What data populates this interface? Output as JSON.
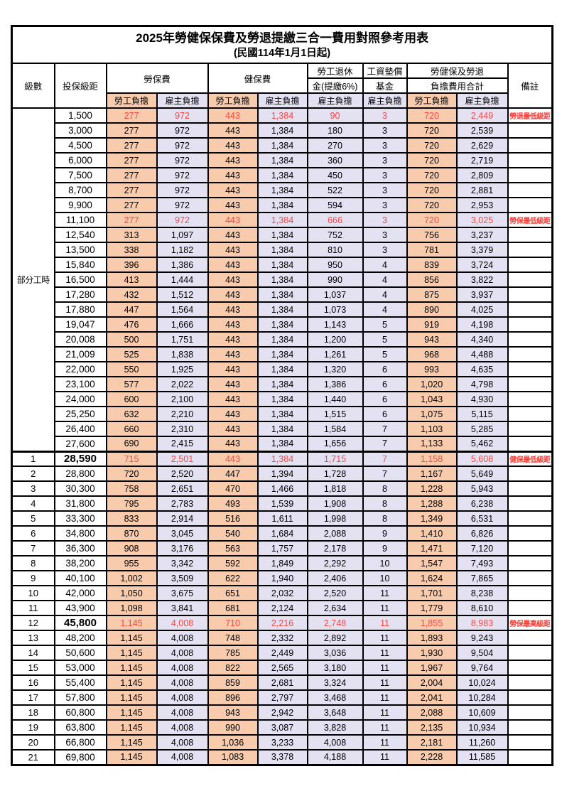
{
  "title": "2025年勞健保保費及勞退提繳三合一費用對照參考用表",
  "subtitle": "(民國114年1月1日起)",
  "header": {
    "level": "級數",
    "bracket": "投保級距",
    "labor_ins": "勞保費",
    "health_ins": "健保費",
    "pension_line1": "勞工退休",
    "pension_line2": "金(提繳6%)",
    "wage_fund_line1": "工資墊償",
    "wage_fund_line2": "基金",
    "total_line1": "勞健保及勞退",
    "total_line2": "負擔費用合計",
    "employee": "勞工負擔",
    "employer": "雇主負擔",
    "remark": "備註"
  },
  "part_time_label": "部分工時",
  "colors": {
    "employee_bg": "#F8CBAD",
    "employer_bg": "#E3E1F2",
    "highlight_red": "#F74740",
    "note_red": "#F83B33"
  },
  "table": {
    "value_column_kinds": [
      "emp",
      "er",
      "emp",
      "er",
      "er",
      "er",
      "emp",
      "er"
    ],
    "rows": [
      {
        "level": "",
        "bracket": "1,500",
        "values": [
          "277",
          "972",
          "443",
          "1,384",
          "90",
          "3",
          "720",
          "2,449"
        ],
        "note": "勞退最低級距",
        "highlight": true,
        "bold_bracket": false
      },
      {
        "level": "",
        "bracket": "3,000",
        "values": [
          "277",
          "972",
          "443",
          "1,384",
          "180",
          "3",
          "720",
          "2,539"
        ],
        "note": "",
        "highlight": false,
        "bold_bracket": false
      },
      {
        "level": "",
        "bracket": "4,500",
        "values": [
          "277",
          "972",
          "443",
          "1,384",
          "270",
          "3",
          "720",
          "2,629"
        ],
        "note": "",
        "highlight": false,
        "bold_bracket": false
      },
      {
        "level": "",
        "bracket": "6,000",
        "values": [
          "277",
          "972",
          "443",
          "1,384",
          "360",
          "3",
          "720",
          "2,719"
        ],
        "note": "",
        "highlight": false,
        "bold_bracket": false
      },
      {
        "level": "",
        "bracket": "7,500",
        "values": [
          "277",
          "972",
          "443",
          "1,384",
          "450",
          "3",
          "720",
          "2,809"
        ],
        "note": "",
        "highlight": false,
        "bold_bracket": false
      },
      {
        "level": "",
        "bracket": "8,700",
        "values": [
          "277",
          "972",
          "443",
          "1,384",
          "522",
          "3",
          "720",
          "2,881"
        ],
        "note": "",
        "highlight": false,
        "bold_bracket": false
      },
      {
        "level": "",
        "bracket": "9,900",
        "values": [
          "277",
          "972",
          "443",
          "1,384",
          "594",
          "3",
          "720",
          "2,953"
        ],
        "note": "",
        "highlight": false,
        "bold_bracket": false
      },
      {
        "level": "",
        "bracket": "11,100",
        "values": [
          "277",
          "972",
          "443",
          "1,384",
          "666",
          "3",
          "720",
          "3,025"
        ],
        "note": "勞保最低級距",
        "highlight": true,
        "bold_bracket": false
      },
      {
        "level": "",
        "bracket": "12,540",
        "values": [
          "313",
          "1,097",
          "443",
          "1,384",
          "752",
          "3",
          "756",
          "3,237"
        ],
        "note": "",
        "highlight": false,
        "bold_bracket": false
      },
      {
        "level": "",
        "bracket": "13,500",
        "values": [
          "338",
          "1,182",
          "443",
          "1,384",
          "810",
          "3",
          "781",
          "3,379"
        ],
        "note": "",
        "highlight": false,
        "bold_bracket": false
      },
      {
        "level": "",
        "bracket": "15,840",
        "values": [
          "396",
          "1,386",
          "443",
          "1,384",
          "950",
          "4",
          "839",
          "3,724"
        ],
        "note": "",
        "highlight": false,
        "bold_bracket": false
      },
      {
        "level": "",
        "bracket": "16,500",
        "values": [
          "413",
          "1,444",
          "443",
          "1,384",
          "990",
          "4",
          "856",
          "3,822"
        ],
        "note": "",
        "highlight": false,
        "bold_bracket": false
      },
      {
        "level": "",
        "bracket": "17,280",
        "values": [
          "432",
          "1,512",
          "443",
          "1,384",
          "1,037",
          "4",
          "875",
          "3,937"
        ],
        "note": "",
        "highlight": false,
        "bold_bracket": false
      },
      {
        "level": "",
        "bracket": "17,880",
        "values": [
          "447",
          "1,564",
          "443",
          "1,384",
          "1,073",
          "4",
          "890",
          "4,025"
        ],
        "note": "",
        "highlight": false,
        "bold_bracket": false
      },
      {
        "level": "",
        "bracket": "19,047",
        "values": [
          "476",
          "1,666",
          "443",
          "1,384",
          "1,143",
          "5",
          "919",
          "4,198"
        ],
        "note": "",
        "highlight": false,
        "bold_bracket": false
      },
      {
        "level": "",
        "bracket": "20,008",
        "values": [
          "500",
          "1,751",
          "443",
          "1,384",
          "1,200",
          "5",
          "943",
          "4,340"
        ],
        "note": "",
        "highlight": false,
        "bold_bracket": false
      },
      {
        "level": "",
        "bracket": "21,009",
        "values": [
          "525",
          "1,838",
          "443",
          "1,384",
          "1,261",
          "5",
          "968",
          "4,488"
        ],
        "note": "",
        "highlight": false,
        "bold_bracket": false
      },
      {
        "level": "",
        "bracket": "22,000",
        "values": [
          "550",
          "1,925",
          "443",
          "1,384",
          "1,320",
          "6",
          "993",
          "4,635"
        ],
        "note": "",
        "highlight": false,
        "bold_bracket": false
      },
      {
        "level": "",
        "bracket": "23,100",
        "values": [
          "577",
          "2,022",
          "443",
          "1,384",
          "1,386",
          "6",
          "1,020",
          "4,798"
        ],
        "note": "",
        "highlight": false,
        "bold_bracket": false
      },
      {
        "level": "",
        "bracket": "24,000",
        "values": [
          "600",
          "2,100",
          "443",
          "1,384",
          "1,440",
          "6",
          "1,043",
          "4,930"
        ],
        "note": "",
        "highlight": false,
        "bold_bracket": false
      },
      {
        "level": "",
        "bracket": "25,250",
        "values": [
          "632",
          "2,210",
          "443",
          "1,384",
          "1,515",
          "6",
          "1,075",
          "5,115"
        ],
        "note": "",
        "highlight": false,
        "bold_bracket": false
      },
      {
        "level": "",
        "bracket": "26,400",
        "values": [
          "660",
          "2,310",
          "443",
          "1,384",
          "1,584",
          "7",
          "1,103",
          "5,285"
        ],
        "note": "",
        "highlight": false,
        "bold_bracket": false
      },
      {
        "level": "",
        "bracket": "27,600",
        "values": [
          "690",
          "2,415",
          "443",
          "1,384",
          "1,656",
          "7",
          "1,133",
          "5,462"
        ],
        "note": "",
        "highlight": false,
        "bold_bracket": false
      },
      {
        "level": "1",
        "bracket": "28,590",
        "values": [
          "715",
          "2,501",
          "443",
          "1,384",
          "1,715",
          "7",
          "1,158",
          "5,608"
        ],
        "note": "健保最低級距",
        "highlight": true,
        "bold_bracket": true,
        "section_break": true
      },
      {
        "level": "2",
        "bracket": "28,800",
        "values": [
          "720",
          "2,520",
          "447",
          "1,394",
          "1,728",
          "7",
          "1,167",
          "5,649"
        ],
        "note": "",
        "highlight": false,
        "bold_bracket": false
      },
      {
        "level": "3",
        "bracket": "30,300",
        "values": [
          "758",
          "2,651",
          "470",
          "1,466",
          "1,818",
          "8",
          "1,228",
          "5,943"
        ],
        "note": "",
        "highlight": false,
        "bold_bracket": false
      },
      {
        "level": "4",
        "bracket": "31,800",
        "values": [
          "795",
          "2,783",
          "493",
          "1,539",
          "1,908",
          "8",
          "1,288",
          "6,238"
        ],
        "note": "",
        "highlight": false,
        "bold_bracket": false
      },
      {
        "level": "5",
        "bracket": "33,300",
        "values": [
          "833",
          "2,914",
          "516",
          "1,611",
          "1,998",
          "8",
          "1,349",
          "6,531"
        ],
        "note": "",
        "highlight": false,
        "bold_bracket": false
      },
      {
        "level": "6",
        "bracket": "34,800",
        "values": [
          "870",
          "3,045",
          "540",
          "1,684",
          "2,088",
          "9",
          "1,410",
          "6,826"
        ],
        "note": "",
        "highlight": false,
        "bold_bracket": false
      },
      {
        "level": "7",
        "bracket": "36,300",
        "values": [
          "908",
          "3,176",
          "563",
          "1,757",
          "2,178",
          "9",
          "1,471",
          "7,120"
        ],
        "note": "",
        "highlight": false,
        "bold_bracket": false
      },
      {
        "level": "8",
        "bracket": "38,200",
        "values": [
          "955",
          "3,342",
          "592",
          "1,849",
          "2,292",
          "10",
          "1,547",
          "7,493"
        ],
        "note": "",
        "highlight": false,
        "bold_bracket": false
      },
      {
        "level": "9",
        "bracket": "40,100",
        "values": [
          "1,002",
          "3,509",
          "622",
          "1,940",
          "2,406",
          "10",
          "1,624",
          "7,865"
        ],
        "note": "",
        "highlight": false,
        "bold_bracket": false
      },
      {
        "level": "10",
        "bracket": "42,000",
        "values": [
          "1,050",
          "3,675",
          "651",
          "2,032",
          "2,520",
          "11",
          "1,701",
          "8,238"
        ],
        "note": "",
        "highlight": false,
        "bold_bracket": false
      },
      {
        "level": "11",
        "bracket": "43,900",
        "values": [
          "1,098",
          "3,841",
          "681",
          "2,124",
          "2,634",
          "11",
          "1,779",
          "8,610"
        ],
        "note": "",
        "highlight": false,
        "bold_bracket": false
      },
      {
        "level": "12",
        "bracket": "45,800",
        "values": [
          "1,145",
          "4,008",
          "710",
          "2,216",
          "2,748",
          "11",
          "1,855",
          "8,983"
        ],
        "note": "勞保最高級距",
        "highlight": true,
        "bold_bracket": true
      },
      {
        "level": "13",
        "bracket": "48,200",
        "values": [
          "1,145",
          "4,008",
          "748",
          "2,332",
          "2,892",
          "11",
          "1,893",
          "9,243"
        ],
        "note": "",
        "highlight": false,
        "bold_bracket": false
      },
      {
        "level": "14",
        "bracket": "50,600",
        "values": [
          "1,145",
          "4,008",
          "785",
          "2,449",
          "3,036",
          "11",
          "1,930",
          "9,504"
        ],
        "note": "",
        "highlight": false,
        "bold_bracket": false
      },
      {
        "level": "15",
        "bracket": "53,000",
        "values": [
          "1,145",
          "4,008",
          "822",
          "2,565",
          "3,180",
          "11",
          "1,967",
          "9,764"
        ],
        "note": "",
        "highlight": false,
        "bold_bracket": false
      },
      {
        "level": "16",
        "bracket": "55,400",
        "values": [
          "1,145",
          "4,008",
          "859",
          "2,681",
          "3,324",
          "11",
          "2,004",
          "10,024"
        ],
        "note": "",
        "highlight": false,
        "bold_bracket": false
      },
      {
        "level": "17",
        "bracket": "57,800",
        "values": [
          "1,145",
          "4,008",
          "896",
          "2,797",
          "3,468",
          "11",
          "2,041",
          "10,284"
        ],
        "note": "",
        "highlight": false,
        "bold_bracket": false
      },
      {
        "level": "18",
        "bracket": "60,800",
        "values": [
          "1,145",
          "4,008",
          "943",
          "2,942",
          "3,648",
          "11",
          "2,088",
          "10,609"
        ],
        "note": "",
        "highlight": false,
        "bold_bracket": false
      },
      {
        "level": "19",
        "bracket": "63,800",
        "values": [
          "1,145",
          "4,008",
          "990",
          "3,087",
          "3,828",
          "11",
          "2,135",
          "10,934"
        ],
        "note": "",
        "highlight": false,
        "bold_bracket": false
      },
      {
        "level": "20",
        "bracket": "66,800",
        "values": [
          "1,145",
          "4,008",
          "1,036",
          "3,233",
          "4,008",
          "11",
          "2,181",
          "11,260"
        ],
        "note": "",
        "highlight": false,
        "bold_bracket": false
      },
      {
        "level": "21",
        "bracket": "69,800",
        "values": [
          "1,145",
          "4,008",
          "1,083",
          "3,378",
          "4,188",
          "11",
          "2,228",
          "11,585"
        ],
        "note": "",
        "highlight": false,
        "bold_bracket": false
      }
    ]
  }
}
